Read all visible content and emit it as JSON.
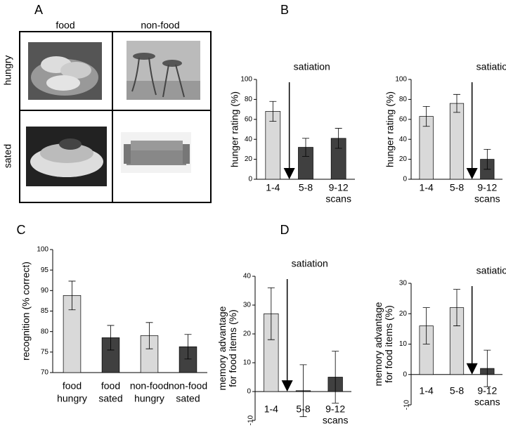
{
  "panel_a": {
    "label": "A",
    "columns": [
      "food",
      "non-food"
    ],
    "rows": [
      "hungry",
      "sated"
    ]
  },
  "chart_data": [
    {
      "type": "bar",
      "panel": "B",
      "ylabel": [
        "hunger rating (%)"
      ],
      "xlabel": "scans",
      "annotation": "satiation",
      "categories": [
        [
          "1-4"
        ],
        [
          "5-8"
        ],
        [
          "9-12"
        ]
      ],
      "values": [
        68,
        32,
        41
      ],
      "errors": [
        10,
        9,
        10
      ],
      "colors": [
        "#d9d9d9",
        "#404040",
        "#404040"
      ],
      "ylim": [
        0,
        100
      ],
      "yticks": [
        0,
        20,
        40,
        60,
        80,
        100
      ]
    },
    {
      "type": "bar",
      "ylabel": [
        "hunger rating (%)"
      ],
      "xlabel": "scans",
      "annotation": "satiation",
      "categories": [
        [
          "1-4"
        ],
        [
          "5-8"
        ],
        [
          "9-12"
        ]
      ],
      "values": [
        63,
        76,
        20
      ],
      "errors": [
        10,
        9,
        10
      ],
      "colors": [
        "#d9d9d9",
        "#d9d9d9",
        "#404040"
      ],
      "ylim": [
        0,
        100
      ],
      "yticks": [
        0,
        20,
        40,
        60,
        80,
        100
      ]
    },
    {
      "type": "bar",
      "panel": "C",
      "ylabel": [
        "recognition (% correct)"
      ],
      "categories": [
        [
          "food",
          "hungry"
        ],
        [
          "food",
          "sated"
        ],
        [
          "non-food",
          "hungry"
        ],
        [
          "non-food",
          "sated"
        ]
      ],
      "values": [
        88.8,
        78.5,
        79,
        76.3
      ],
      "errors": [
        3.5,
        3,
        3.2,
        3
      ],
      "colors": [
        "#d9d9d9",
        "#404040",
        "#d9d9d9",
        "#404040"
      ],
      "ylim": [
        70,
        100
      ],
      "yticks": [
        70,
        75,
        80,
        85,
        90,
        95,
        100
      ]
    },
    {
      "type": "bar",
      "panel": "D",
      "ylabel": [
        "memory advantage",
        "for food items (%)"
      ],
      "xlabel": "scans",
      "annotation": "satiation",
      "categories": [
        [
          "1-4"
        ],
        [
          "5-8"
        ],
        [
          "9-12"
        ]
      ],
      "values": [
        27,
        0.3,
        5
      ],
      "errors": [
        9,
        9,
        9
      ],
      "colors": [
        "#d9d9d9",
        "#404040",
        "#404040"
      ],
      "ylim": [
        -10,
        40
      ],
      "yticks": [
        -10,
        0,
        10,
        20,
        30,
        40
      ]
    },
    {
      "type": "bar",
      "ylabel": [
        "memory advantage",
        "for food items (%)"
      ],
      "xlabel": "scans",
      "annotation": "satiation",
      "categories": [
        [
          "1-4"
        ],
        [
          "5-8"
        ],
        [
          "9-12"
        ]
      ],
      "values": [
        16,
        22,
        2
      ],
      "errors": [
        6,
        6,
        6
      ],
      "colors": [
        "#d9d9d9",
        "#d9d9d9",
        "#404040"
      ],
      "ylim": [
        -10,
        30
      ],
      "yticks": [
        -10,
        0,
        10,
        20,
        30
      ]
    }
  ]
}
